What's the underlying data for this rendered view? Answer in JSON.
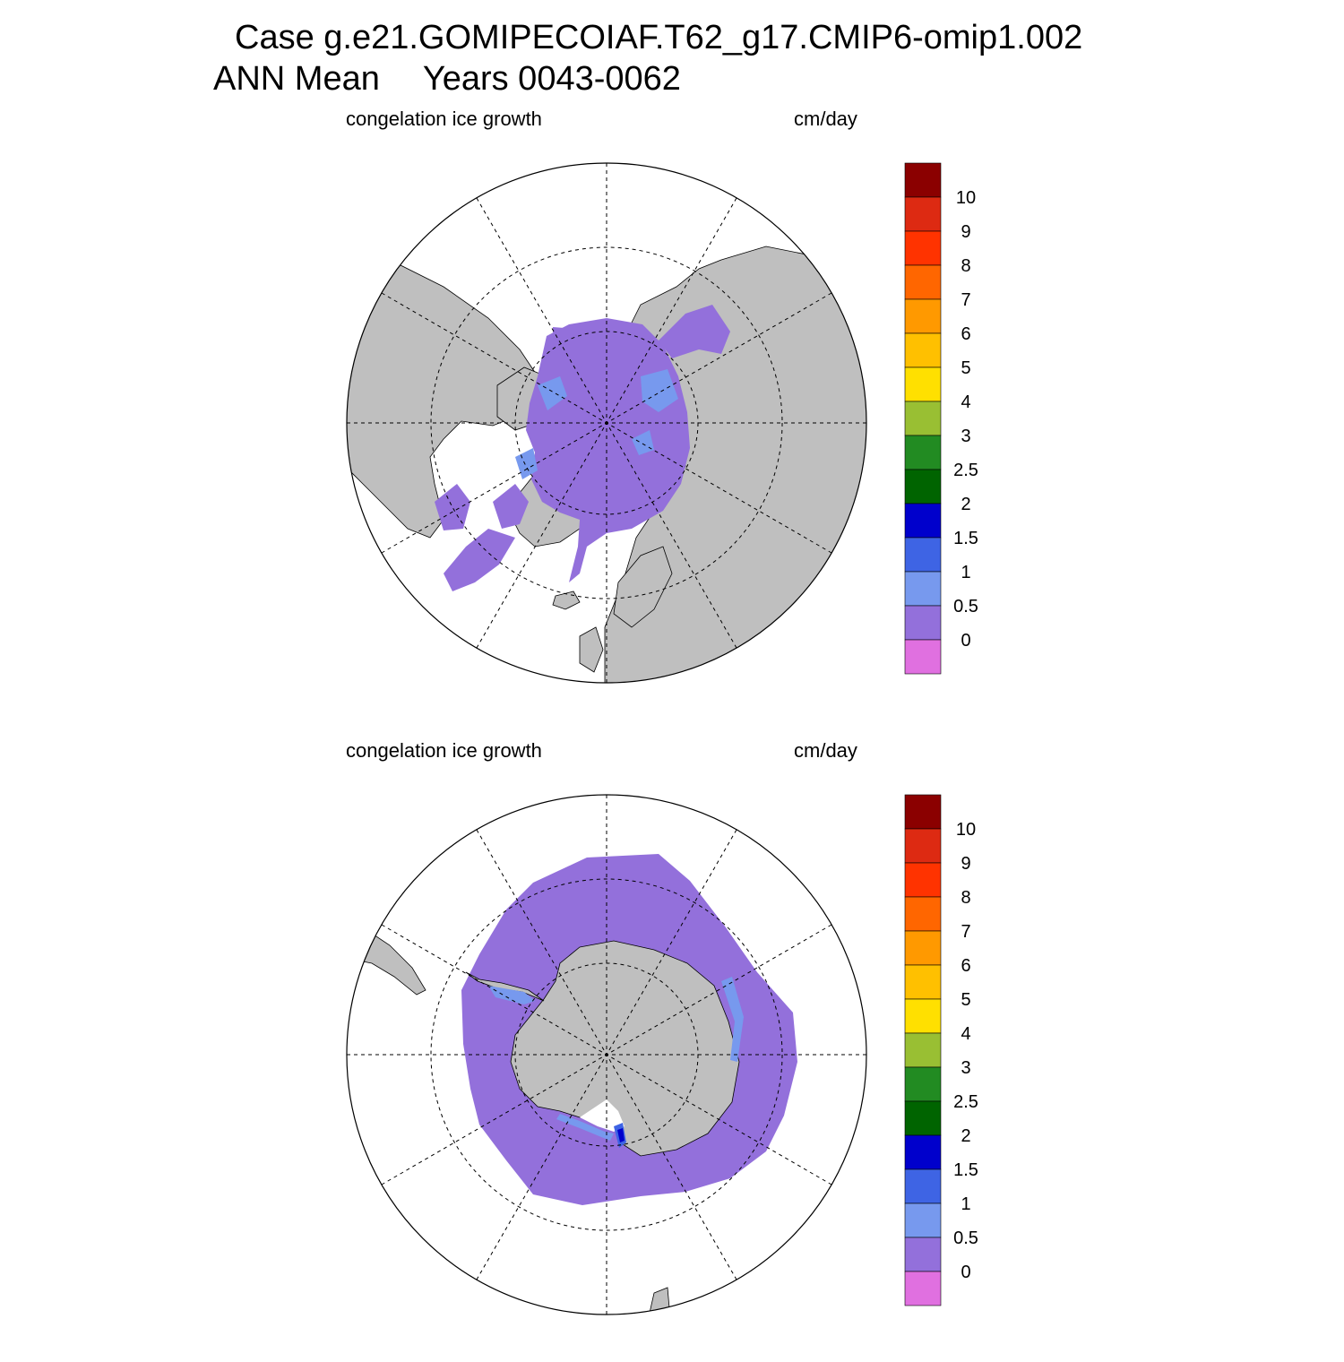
{
  "title": {
    "case_line": "Case g.e21.GOMIPECOIAF.T62_g17.CMIP6-omip1.002",
    "period_label": "ANN Mean",
    "years_label": "Years 0043-0062"
  },
  "panels": [
    {
      "id": "north",
      "hemisphere": "northern",
      "variable": "congelation ice growth",
      "units": "cm/day"
    },
    {
      "id": "south",
      "hemisphere": "southern",
      "variable": "congelation ice growth",
      "units": "cm/day"
    }
  ],
  "colorbar": {
    "labels": [
      "10",
      "9",
      "8",
      "7",
      "6",
      "5",
      "4",
      "3",
      "2.5",
      "2",
      "1.5",
      "1",
      "0.5",
      "0"
    ],
    "colors": [
      "#8b0000",
      "#dd2a12",
      "#ff3300",
      "#ff6600",
      "#ff9900",
      "#ffc000",
      "#ffe000",
      "#99bf33",
      "#228b22",
      "#006400",
      "#0000cc",
      "#3e64e4",
      "#7799ee",
      "#9370db",
      "#e070e0"
    ]
  },
  "map_colors": {
    "land": "#bfbfbf",
    "ocean": "#ffffff",
    "ice_low": "#9370db",
    "ice_mid": "#7799ee",
    "ice_high": "#3e64e4",
    "ice_top": "#0000cc"
  }
}
